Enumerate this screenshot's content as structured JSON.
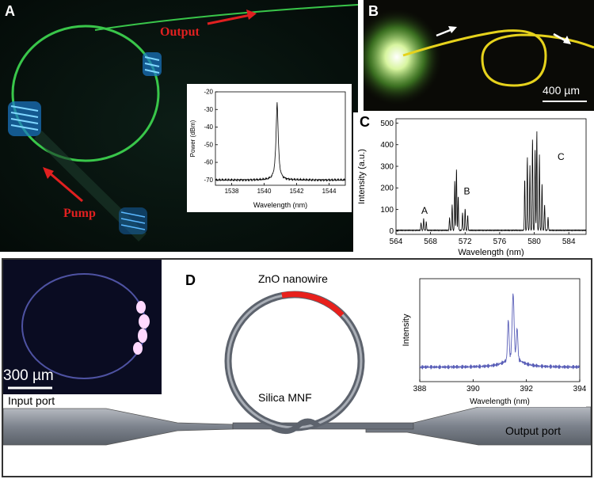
{
  "panel_a": {
    "label": "A",
    "output_label": "Output",
    "pump_label": "Pump",
    "colors": {
      "ring": "#39c64a",
      "arrow": "#e02020",
      "background": "#07130f",
      "blue_coil": "#3bb4ff"
    },
    "inset_chart": {
      "type": "line",
      "xlabel": "Wavelength (nm)",
      "ylabel": "Power (dBm)",
      "xlim": [
        1537,
        1545
      ],
      "ylim": [
        -73,
        -20
      ],
      "xticks": [
        1538,
        1540,
        1542,
        1544
      ],
      "yticks": [
        -20,
        -30,
        -40,
        -50,
        -60,
        -70
      ],
      "peak_x": 1540.8,
      "peak_y": -26,
      "baseline": -70
    }
  },
  "panel_b": {
    "label": "B",
    "scale_label": "400 µm",
    "colors": {
      "ring": "#e6d21c",
      "glow": "#a8e85a",
      "background": "#0a0a06"
    }
  },
  "panel_c": {
    "label": "C",
    "chart_data": {
      "type": "line",
      "xlabel": "Wavelength (nm)",
      "ylabel": "Intensity (a.u.)",
      "xlim": [
        564,
        586
      ],
      "ylim": [
        -15,
        520
      ],
      "xticks": [
        564,
        568,
        572,
        576,
        580,
        584
      ],
      "yticks": [
        0,
        100,
        200,
        300,
        400,
        500
      ],
      "annotations": [
        {
          "text": "A",
          "x": 567.3,
          "y": 80
        },
        {
          "text": "B",
          "x": 572.2,
          "y": 170
        },
        {
          "text": "C",
          "x": 583.1,
          "y": 330
        }
      ],
      "peaks": [
        {
          "x": 566.9,
          "y": 35
        },
        {
          "x": 567.2,
          "y": 55
        },
        {
          "x": 567.5,
          "y": 40
        },
        {
          "x": 570.2,
          "y": 60
        },
        {
          "x": 570.5,
          "y": 120
        },
        {
          "x": 570.8,
          "y": 230
        },
        {
          "x": 571.0,
          "y": 290
        },
        {
          "x": 571.2,
          "y": 160
        },
        {
          "x": 571.7,
          "y": 80
        },
        {
          "x": 572.0,
          "y": 100
        },
        {
          "x": 572.3,
          "y": 70
        },
        {
          "x": 578.9,
          "y": 240
        },
        {
          "x": 579.2,
          "y": 340
        },
        {
          "x": 579.5,
          "y": 300
        },
        {
          "x": 579.8,
          "y": 430
        },
        {
          "x": 580.1,
          "y": 380
        },
        {
          "x": 580.3,
          "y": 460
        },
        {
          "x": 580.6,
          "y": 350
        },
        {
          "x": 580.9,
          "y": 220
        },
        {
          "x": 581.2,
          "y": 120
        },
        {
          "x": 581.6,
          "y": 60
        }
      ]
    }
  },
  "panel_d": {
    "label": "D",
    "zno_label": "ZnO nanowire",
    "silica_label": "Silica MNF",
    "input_label": "Input port",
    "output_label": "Output port",
    "scale_label": "300 µm",
    "colors": {
      "fiber": "#8a8f98",
      "nanowire": "#e8201c",
      "inset_bg": "#0a0c22",
      "spectrum": "#5a5fb8"
    },
    "inset_chart": {
      "type": "line",
      "xlabel": "Wavelength (nm)",
      "ylabel": "Intensity",
      "xlim": [
        388,
        394
      ],
      "xticks": [
        388,
        390,
        392,
        394
      ],
      "peak_x": 391.5
    }
  }
}
